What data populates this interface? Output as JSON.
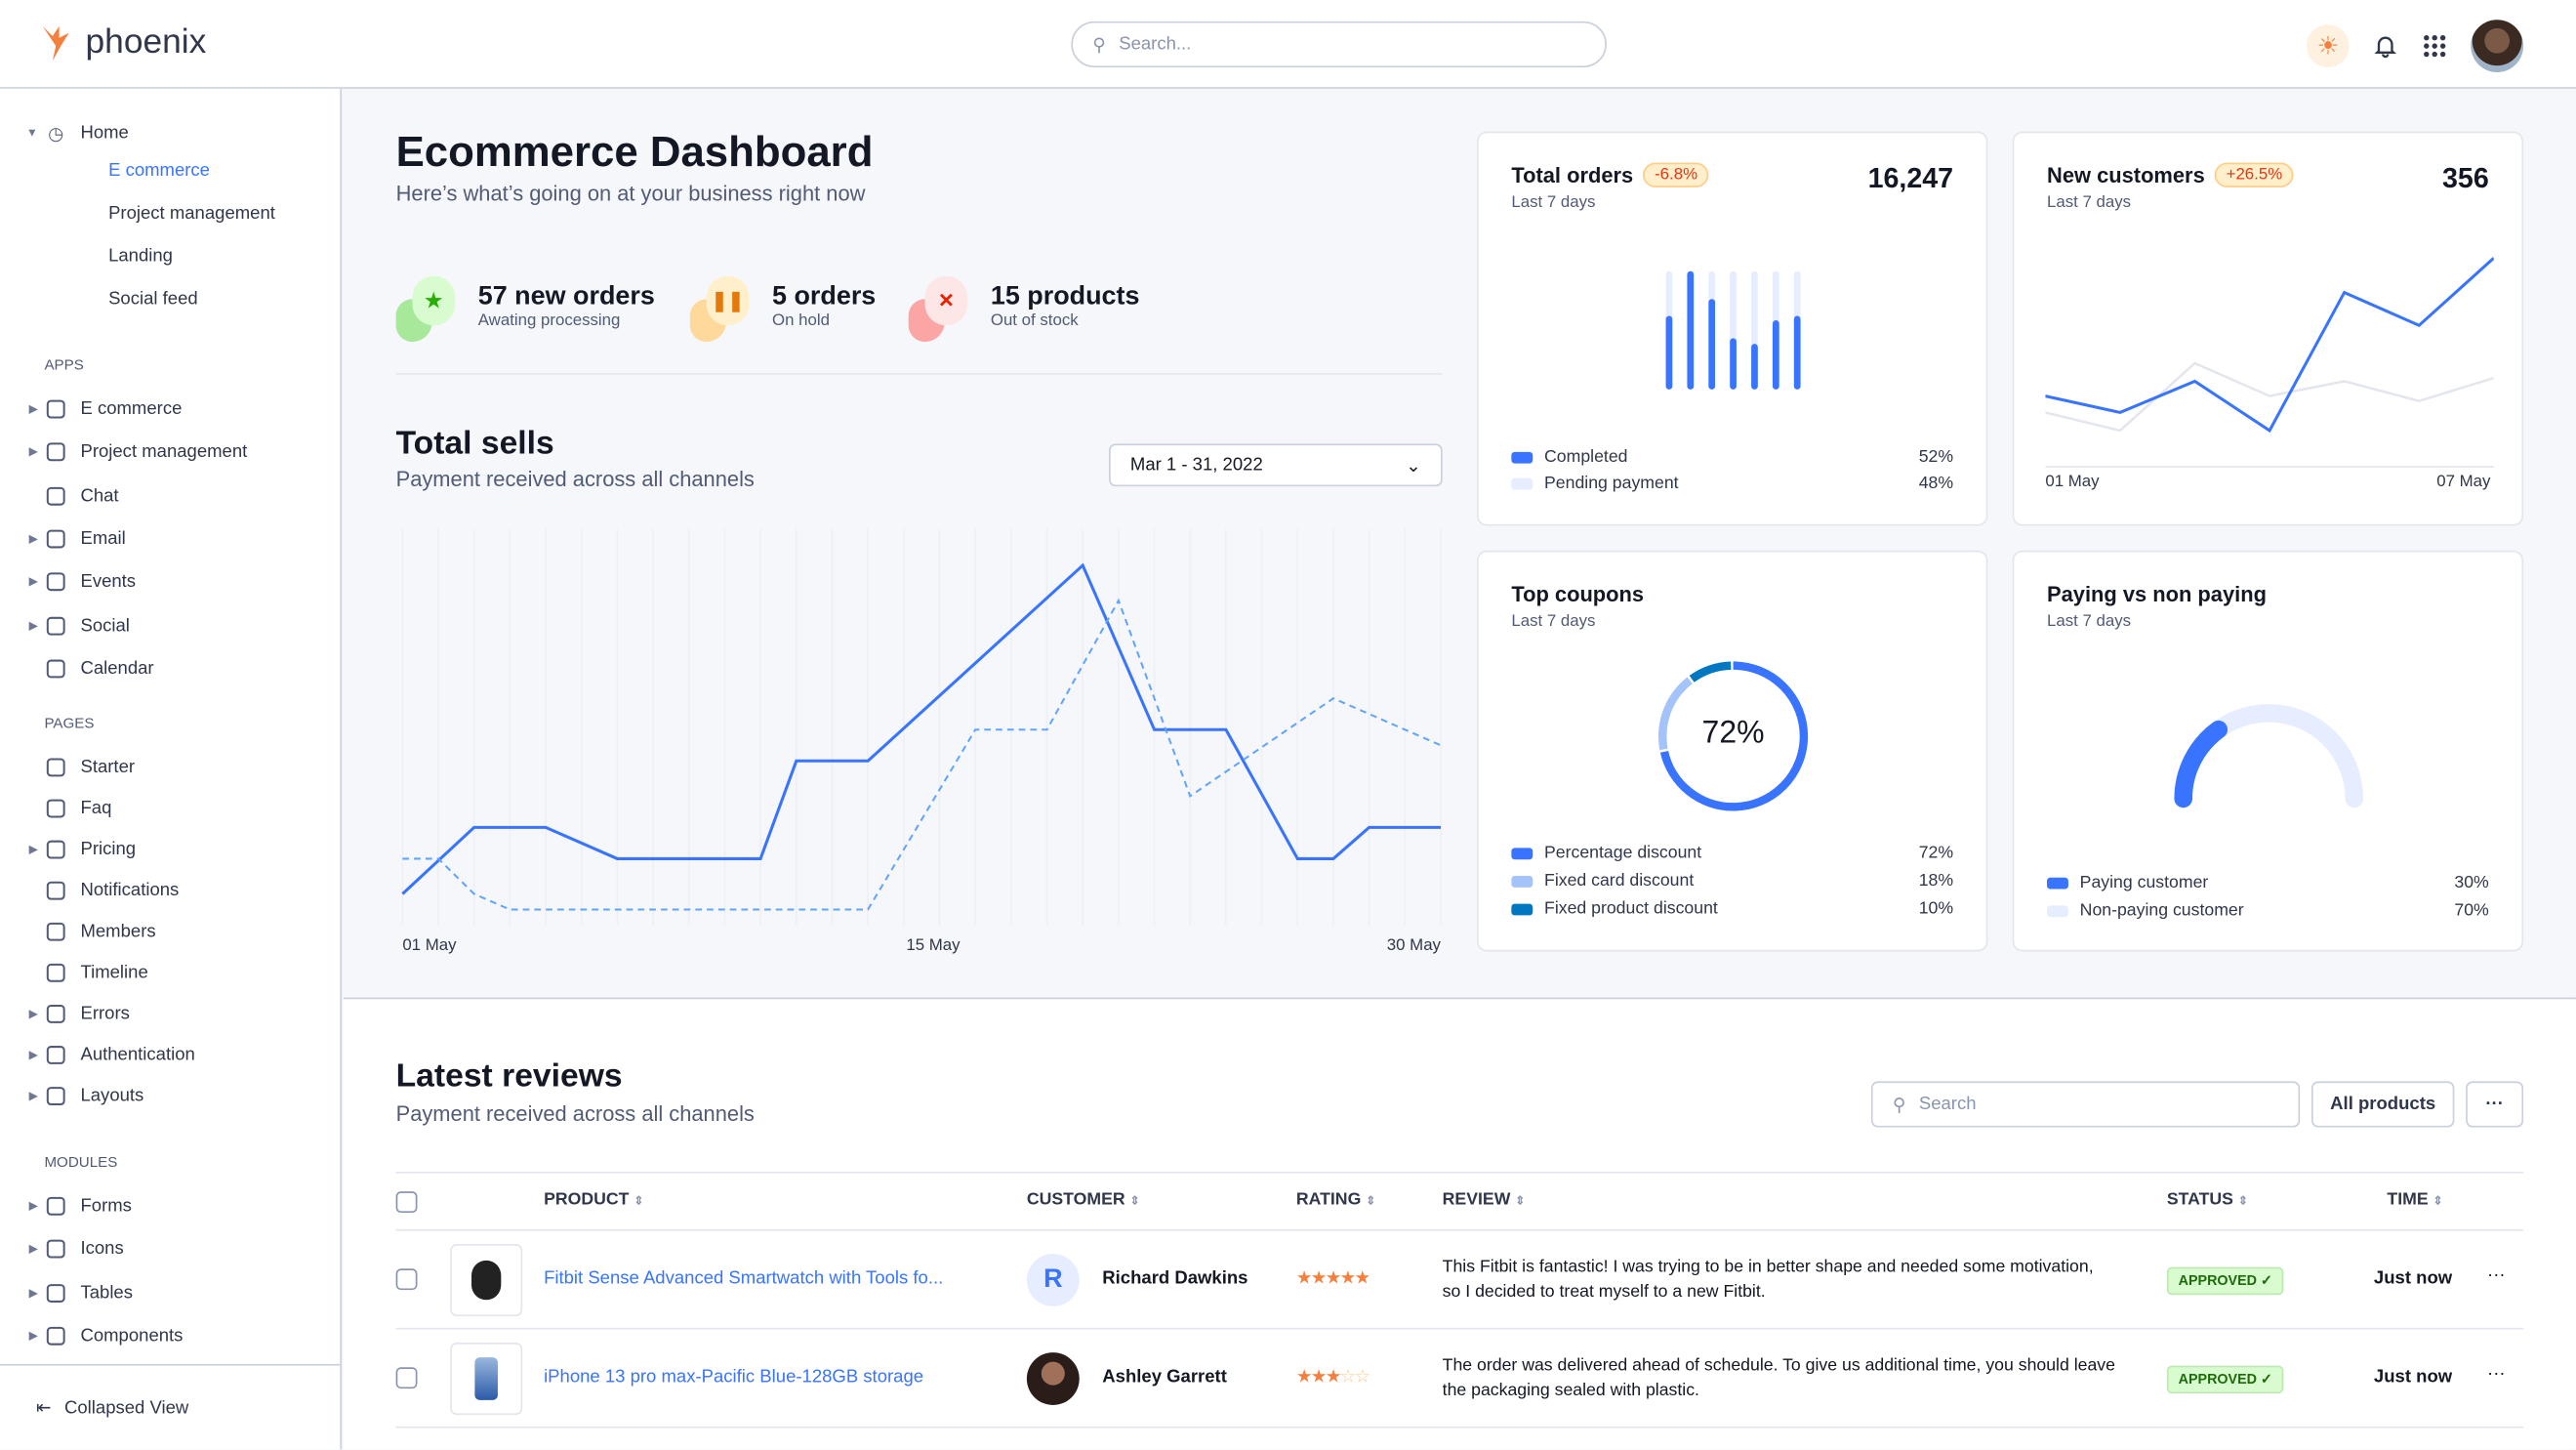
{
  "app": {
    "brand": "phoenix",
    "search_placeholder": "Search...",
    "icons": [
      "sun-icon",
      "bell-icon",
      "apps-grid-icon",
      "user-avatar"
    ]
  },
  "sidebar": {
    "home": {
      "label": "Home",
      "children": [
        {
          "label": "E commerce",
          "active": true
        },
        {
          "label": "Project management"
        },
        {
          "label": "Landing"
        },
        {
          "label": "Social feed"
        }
      ]
    },
    "sections": [
      {
        "title": "APPS",
        "items": [
          {
            "label": "E commerce",
            "icon": "cart-icon",
            "expandable": true
          },
          {
            "label": "Project management",
            "icon": "clipboard-icon",
            "expandable": true
          },
          {
            "label": "Chat",
            "icon": "chat-icon",
            "expandable": false
          },
          {
            "label": "Email",
            "icon": "mail-icon",
            "expandable": true
          },
          {
            "label": "Events",
            "icon": "bookmark-icon",
            "expandable": true
          },
          {
            "label": "Social",
            "icon": "share-icon",
            "expandable": true
          },
          {
            "label": "Calendar",
            "icon": "calendar-icon",
            "expandable": false
          }
        ]
      },
      {
        "title": "PAGES",
        "items": [
          {
            "label": "Starter",
            "icon": "compass-icon",
            "expandable": false
          },
          {
            "label": "Faq",
            "icon": "help-icon",
            "expandable": false
          },
          {
            "label": "Pricing",
            "icon": "tag-icon",
            "expandable": true
          },
          {
            "label": "Notifications",
            "icon": "bell-icon",
            "expandable": false
          },
          {
            "label": "Members",
            "icon": "users-icon",
            "expandable": false
          },
          {
            "label": "Timeline",
            "icon": "clock-icon",
            "expandable": false
          },
          {
            "label": "Errors",
            "icon": "alert-icon",
            "expandable": true
          },
          {
            "label": "Authentication",
            "icon": "lock-icon",
            "expandable": true
          },
          {
            "label": "Layouts",
            "icon": "layout-icon",
            "expandable": true
          }
        ]
      },
      {
        "title": "MODULES",
        "items": [
          {
            "label": "Forms",
            "icon": "file-icon",
            "expandable": true
          },
          {
            "label": "Icons",
            "icon": "grid-icon",
            "expandable": true
          },
          {
            "label": "Tables",
            "icon": "table-icon",
            "expandable": true
          },
          {
            "label": "Components",
            "icon": "package-icon",
            "expandable": true
          }
        ]
      }
    ],
    "collapsed_label": "Collapsed View"
  },
  "header": {
    "title": "Ecommerce Dashboard",
    "subtitle": "Here’s what’s going on at your business right now"
  },
  "stats": [
    {
      "title": "57 new orders",
      "subtitle": "Awating processing",
      "icon": "star-icon",
      "color": "#25b003"
    },
    {
      "title": "5 orders",
      "subtitle": "On hold",
      "icon": "pause-icon",
      "color": "#e5780b"
    },
    {
      "title": "15 products",
      "subtitle": "Out of stock",
      "icon": "x-icon",
      "color": "#ec1f00"
    }
  ],
  "total_sells": {
    "title": "Total sells",
    "subtitle": "Payment received across all channels",
    "date_range": "Mar 1 - 31, 2022"
  },
  "chart_data": [
    {
      "type": "line",
      "title": "Total sells",
      "x_ticks": [
        "01 May",
        "15 May",
        "30 May"
      ],
      "x_range": [
        1,
        30
      ],
      "grid": "vertical",
      "series": [
        {
          "style": "solid",
          "color": "#3874ff",
          "points": [
            [
              1,
              8
            ],
            [
              3,
              25
            ],
            [
              5,
              25
            ],
            [
              7,
              17
            ],
            [
              9,
              17
            ],
            [
              11,
              17
            ],
            [
              12,
              42
            ],
            [
              14,
              42
            ],
            [
              20,
              92
            ],
            [
              22,
              50
            ],
            [
              24,
              50
            ],
            [
              26,
              17
            ],
            [
              27,
              17
            ],
            [
              28,
              25
            ],
            [
              30,
              25
            ]
          ]
        },
        {
          "style": "dashed",
          "color": "#60a5fa",
          "points": [
            [
              1,
              17
            ],
            [
              2,
              17
            ],
            [
              3,
              8
            ],
            [
              4,
              4
            ],
            [
              14,
              4
            ],
            [
              17,
              50
            ],
            [
              19,
              50
            ],
            [
              21,
              83
            ],
            [
              23,
              33
            ],
            [
              27,
              58
            ],
            [
              30,
              46
            ]
          ]
        }
      ]
    },
    {
      "type": "bar",
      "title": "Total orders",
      "values": [
        0.6,
        1.0,
        0.75,
        0.4,
        0.35,
        0.56,
        0.6
      ],
      "max": 1,
      "legend": [
        {
          "label": "Completed",
          "value": "52%",
          "color": "#3874ff"
        },
        {
          "label": "Pending payment",
          "value": "48%",
          "color": "#e5edff"
        }
      ]
    },
    {
      "type": "line",
      "title": "New customers",
      "x_ticks": [
        "01 May",
        "07 May"
      ],
      "series": [
        {
          "color": "#3874ff",
          "values": [
            43,
            33,
            52,
            22,
            106,
            86,
            127
          ]
        },
        {
          "color": "#e3e6ed",
          "values": [
            33,
            22,
            63,
            43,
            52,
            40,
            54
          ]
        }
      ]
    },
    {
      "type": "pie",
      "title": "Top coupons",
      "center_label": "72%",
      "slices": [
        {
          "label": "Percentage discount",
          "value": 72,
          "color": "#3874ff"
        },
        {
          "label": "Fixed card discount",
          "value": 18,
          "color": "#a5c3fb"
        },
        {
          "label": "Fixed product discount",
          "value": 10,
          "color": "#0077c0"
        }
      ]
    },
    {
      "type": "pie",
      "title": "Paying vs non paying",
      "gauge": true,
      "slices": [
        {
          "label": "Paying customer",
          "value": 30,
          "color": "#3874ff"
        },
        {
          "label": "Non-paying customer",
          "value": 70,
          "color": "#e5edff"
        }
      ]
    }
  ],
  "cards": {
    "orders": {
      "title": "Total orders",
      "badge": "-6.8%",
      "subtitle": "Last 7 days",
      "value": "16,247",
      "legend": [
        {
          "label": "Completed",
          "value": "52%"
        },
        {
          "label": "Pending payment",
          "value": "48%"
        }
      ]
    },
    "customers": {
      "title": "New customers",
      "badge": "+26.5%",
      "subtitle": "Last 7 days",
      "value": "356",
      "x_start": "01 May",
      "x_end": "07 May"
    },
    "coupons": {
      "title": "Top coupons",
      "subtitle": "Last 7 days",
      "center": "72%",
      "legend": [
        {
          "label": "Percentage discount",
          "value": "72%"
        },
        {
          "label": "Fixed card discount",
          "value": "18%"
        },
        {
          "label": "Fixed product discount",
          "value": "10%"
        }
      ]
    },
    "paying": {
      "title": "Paying vs non paying",
      "subtitle": "Last 7 days",
      "legend": [
        {
          "label": "Paying customer",
          "value": "30%"
        },
        {
          "label": "Non-paying customer",
          "value": "70%"
        }
      ]
    }
  },
  "reviews": {
    "title": "Latest reviews",
    "subtitle": "Payment received across all channels",
    "search_placeholder": "Search",
    "filter_label": "All products",
    "more_label": "···",
    "columns": [
      "PRODUCT",
      "CUSTOMER",
      "RATING",
      "REVIEW",
      "STATUS",
      "TIME"
    ],
    "rows": [
      {
        "product": "Fitbit Sense Advanced Smartwatch with Tools fo...",
        "customer": "Richard Dawkins",
        "initial": "R",
        "rating": 5,
        "review": "This Fitbit is fantastic! I was trying to be in better shape and needed some motivation, so I decided to treat myself to a new Fitbit.",
        "status": "APPROVED ✓",
        "time": "Just now"
      },
      {
        "product": "iPhone 13 pro max-Pacific Blue-128GB storage",
        "customer": "Ashley Garrett",
        "initial": "",
        "rating": 3,
        "review": "The order was delivered ahead of schedule. To give us additional time, you should leave the packaging sealed with plastic.",
        "status": "APPROVED ✓",
        "time": "Just now"
      }
    ]
  }
}
